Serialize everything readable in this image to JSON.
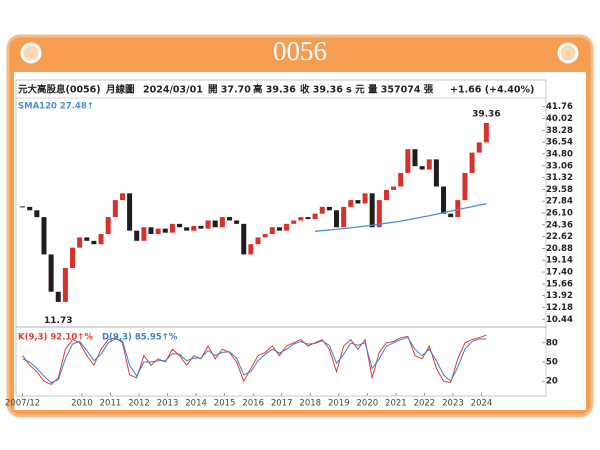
{
  "header": {
    "title": "0056"
  },
  "info": {
    "name": "元大高股息(0056)",
    "period": "月線圖",
    "date": "2024/03/01",
    "open": "開 37.70",
    "high": "高 39.36",
    "close": "收 39.36 s 元",
    "volume": "量 357074 張",
    "change": "+1.66 (+4.40%)"
  },
  "chart_data": [
    {
      "type": "candlestick",
      "x": [
        2007.92,
        2008.17,
        2008.42,
        2008.67,
        2008.92,
        2009.17,
        2009.42,
        2009.67,
        2009.92,
        2010.17,
        2010.42,
        2010.67,
        2010.92,
        2011.17,
        2011.42,
        2011.67,
        2011.92,
        2012.17,
        2012.42,
        2012.67,
        2012.92,
        2013.17,
        2013.42,
        2013.67,
        2013.92,
        2014.17,
        2014.42,
        2014.67,
        2014.92,
        2015.17,
        2015.42,
        2015.67,
        2015.92,
        2016.17,
        2016.42,
        2016.67,
        2016.92,
        2017.17,
        2017.42,
        2017.67,
        2017.92,
        2018.17,
        2018.42,
        2018.67,
        2018.92,
        2019.17,
        2019.42,
        2019.67,
        2019.92,
        2020.17,
        2020.42,
        2020.67,
        2020.92,
        2021.17,
        2021.42,
        2021.67,
        2021.92,
        2022.17,
        2022.42,
        2022.67,
        2022.92,
        2023.17,
        2023.42,
        2023.67,
        2023.92,
        2024.17
      ],
      "values": [
        27.0,
        26.5,
        25.5,
        20.0,
        14.5,
        13.0,
        18.0,
        21.0,
        22.5,
        22.0,
        21.5,
        23.0,
        25.5,
        28.0,
        29.0,
        23.5,
        22.0,
        24.0,
        23.0,
        23.8,
        23.2,
        24.5,
        24.0,
        23.5,
        24.2,
        23.8,
        25.0,
        24.0,
        25.5,
        25.0,
        24.5,
        20.0,
        21.5,
        22.5,
        23.0,
        24.0,
        23.5,
        24.5,
        25.0,
        25.5,
        25.2,
        26.0,
        27.0,
        26.5,
        24.0,
        27.0,
        28.0,
        27.5,
        29.0,
        24.0,
        28.0,
        29.5,
        30.0,
        32.0,
        35.5,
        33.0,
        32.5,
        34.0,
        30.0,
        26.0,
        25.5,
        28.0,
        32.0,
        35.0,
        36.5,
        39.36
      ],
      "up_color": "#d8312b",
      "down_color": "#1e1e1e",
      "xlim": [
        2007.83,
        2026.05
      ],
      "ylim": [
        9.6,
        42.6
      ],
      "yticks": [
        41.76,
        40.02,
        38.28,
        36.54,
        {
          "value": 34.8,
          "label": "34.80"
        },
        33.06,
        31.32,
        29.58,
        27.84,
        {
          "value": 26.1,
          "label": "26.10"
        },
        24.36,
        22.62,
        20.88,
        19.14,
        {
          "value": 17.4,
          "label": "17.40"
        },
        15.66,
        13.92,
        12.18,
        10.44
      ],
      "annotations": [
        {
          "label": "39.36",
          "x": 2024.17,
          "value": 39.36
        },
        {
          "label": "11.73",
          "x": 2009.17,
          "value": 11.73
        }
      ],
      "sma": {
        "name": "SMA120 27.48↑",
        "color": "#4a8fd6",
        "x": [
          2018.17,
          2019.17,
          2020.17,
          2021.17,
          2022.17,
          2023.17,
          2024.17
        ],
        "values": [
          23.4,
          23.8,
          24.3,
          24.9,
          25.7,
          26.6,
          27.48
        ]
      }
    },
    {
      "type": "line",
      "x": [
        2007.92,
        2008.17,
        2008.42,
        2008.67,
        2008.92,
        2009.17,
        2009.42,
        2009.67,
        2009.92,
        2010.17,
        2010.42,
        2010.67,
        2010.92,
        2011.17,
        2011.42,
        2011.67,
        2011.92,
        2012.17,
        2012.42,
        2012.67,
        2012.92,
        2013.17,
        2013.42,
        2013.67,
        2013.92,
        2014.17,
        2014.42,
        2014.67,
        2014.92,
        2015.17,
        2015.42,
        2015.67,
        2015.92,
        2016.17,
        2016.42,
        2016.67,
        2016.92,
        2017.17,
        2017.42,
        2017.67,
        2017.92,
        2018.17,
        2018.42,
        2018.67,
        2018.92,
        2019.17,
        2019.42,
        2019.67,
        2019.92,
        2020.17,
        2020.42,
        2020.67,
        2020.92,
        2021.17,
        2021.42,
        2021.67,
        2021.92,
        2022.17,
        2022.42,
        2022.67,
        2022.92,
        2023.17,
        2023.42,
        2023.67,
        2023.92,
        2024.17
      ],
      "series": [
        {
          "name": "K(9,3) 92.10↑%",
          "color": "#e03c31",
          "values": [
            60,
            45,
            35,
            20,
            15,
            25,
            70,
            85,
            80,
            60,
            45,
            70,
            85,
            88,
            80,
            30,
            25,
            60,
            45,
            55,
            50,
            70,
            60,
            45,
            60,
            55,
            75,
            55,
            70,
            65,
            50,
            20,
            40,
            60,
            65,
            75,
            60,
            75,
            80,
            85,
            75,
            80,
            85,
            70,
            35,
            75,
            85,
            70,
            85,
            25,
            65,
            80,
            82,
            88,
            90,
            60,
            55,
            75,
            40,
            20,
            18,
            55,
            80,
            85,
            88,
            92.1
          ]
        },
        {
          "name": "D(9,3) 85.95↑%",
          "color": "#3f7fd0",
          "values": [
            55,
            50,
            40,
            28,
            18,
            22,
            55,
            78,
            82,
            68,
            52,
            62,
            80,
            86,
            83,
            45,
            28,
            50,
            50,
            52,
            52,
            63,
            62,
            52,
            56,
            56,
            68,
            60,
            65,
            66,
            56,
            30,
            35,
            52,
            62,
            70,
            64,
            70,
            78,
            82,
            78,
            79,
            83,
            76,
            48,
            62,
            80,
            76,
            80,
            40,
            55,
            75,
            80,
            85,
            88,
            70,
            60,
            70,
            52,
            30,
            20,
            42,
            70,
            82,
            86,
            85.95
          ]
        }
      ],
      "xlim": [
        2007.83,
        2026.05
      ],
      "xticks": [
        {
          "value": 2007.92,
          "label": "2007/12"
        },
        2010,
        2011,
        2012,
        2013,
        2014,
        2015,
        2016,
        2017,
        2018,
        2019,
        2020,
        2021,
        2022,
        2023,
        2024
      ],
      "ylim": [
        0,
        100
      ],
      "yticks": [
        20,
        50,
        80
      ]
    }
  ]
}
